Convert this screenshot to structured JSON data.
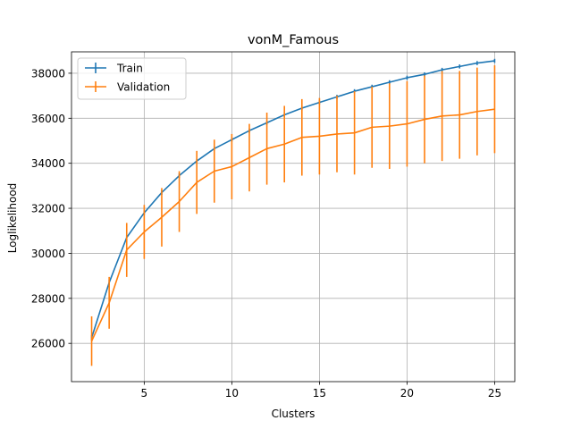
{
  "chart_data": {
    "type": "line",
    "title": "vonM_Famous",
    "xlabel": "Clusters",
    "ylabel": "Loglikelihood",
    "xlim": [
      0.85,
      26.15
    ],
    "ylim": [
      24300,
      38950
    ],
    "xticks": [
      5,
      10,
      15,
      20,
      25
    ],
    "yticks": [
      26000,
      28000,
      30000,
      32000,
      34000,
      36000,
      38000
    ],
    "grid": true,
    "legend_position": "top-left",
    "x": [
      2,
      3,
      4,
      5,
      6,
      7,
      8,
      9,
      10,
      11,
      12,
      13,
      14,
      15,
      16,
      17,
      18,
      19,
      20,
      21,
      22,
      23,
      24,
      25
    ],
    "series": [
      {
        "name": "Train",
        "color": "#1f77b4",
        "values": [
          26250,
          28700,
          30700,
          31800,
          32700,
          33450,
          34100,
          34650,
          35050,
          35450,
          35800,
          36150,
          36450,
          36700,
          36950,
          37200,
          37400,
          37600,
          37800,
          37950,
          38150,
          38300,
          38450,
          38550
        ],
        "errors": [
          120,
          110,
          100,
          100,
          100,
          100,
          90,
          90,
          90,
          90,
          90,
          90,
          90,
          90,
          90,
          90,
          90,
          90,
          90,
          90,
          90,
          90,
          90,
          90
        ]
      },
      {
        "name": "Validation",
        "color": "#ff7f0e",
        "values": [
          26100,
          27800,
          30150,
          30950,
          31600,
          32300,
          33150,
          33650,
          33850,
          34250,
          34650,
          34850,
          35150,
          35200,
          35300,
          35350,
          35600,
          35650,
          35750,
          35950,
          36100,
          36150,
          36300,
          36400
        ],
        "errors": [
          1100,
          1150,
          1200,
          1200,
          1300,
          1350,
          1400,
          1400,
          1450,
          1500,
          1600,
          1700,
          1700,
          1700,
          1700,
          1850,
          1800,
          1900,
          1900,
          1950,
          2000,
          1950,
          1950,
          1950
        ]
      }
    ]
  }
}
